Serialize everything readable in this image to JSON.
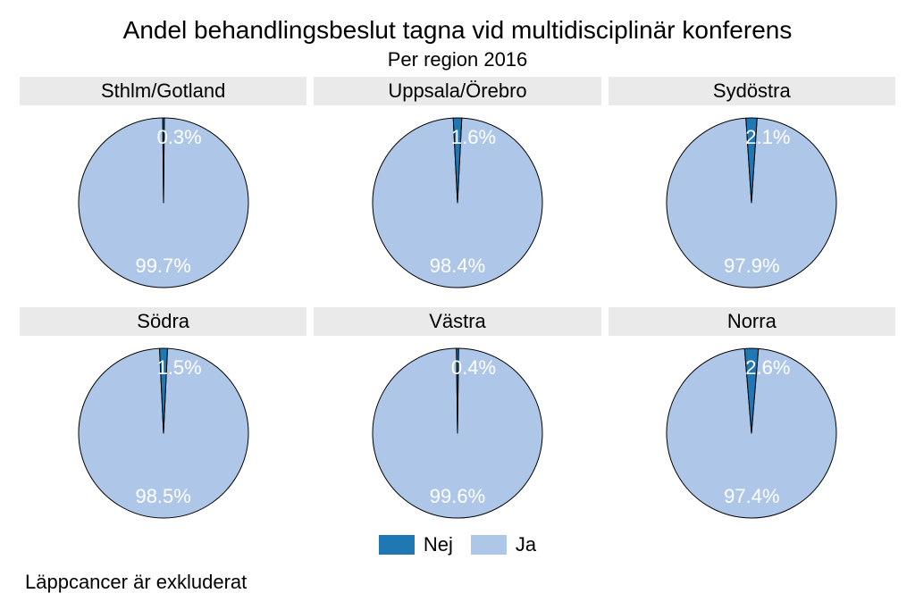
{
  "title": "Andel behandlingsbeslut tagna vid multidisciplinär konferens",
  "subtitle": "Per region 2016",
  "footnote": "Läppcancer är exkluderat",
  "colors": {
    "nej": "#1f77b4",
    "ja": "#aec7e8",
    "stroke": "#000000",
    "panel_header_bg": "#eaeaea",
    "background": "#ffffff",
    "label": "#ffffff"
  },
  "pie": {
    "radius": 95,
    "stroke_width": 1,
    "start_angle_deg": 0,
    "svg_size": 200
  },
  "label_fontsize": 22,
  "title_fontsize": 28,
  "subtitle_fontsize": 22,
  "legend": {
    "items": [
      {
        "key": "nej",
        "label": "Nej",
        "color": "#1f77b4"
      },
      {
        "key": "ja",
        "label": "Ja",
        "color": "#aec7e8"
      }
    ]
  },
  "panels": [
    {
      "name": "Sthlm/Gotland",
      "slices": [
        {
          "key": "nej",
          "value": 0.3,
          "label": "0.3%",
          "color": "#1f77b4"
        },
        {
          "key": "ja",
          "value": 99.7,
          "label": "99.7%",
          "color": "#aec7e8"
        }
      ]
    },
    {
      "name": "Uppsala/Örebro",
      "slices": [
        {
          "key": "nej",
          "value": 1.6,
          "label": "1.6%",
          "color": "#1f77b4"
        },
        {
          "key": "ja",
          "value": 98.4,
          "label": "98.4%",
          "color": "#aec7e8"
        }
      ]
    },
    {
      "name": "Sydöstra",
      "slices": [
        {
          "key": "nej",
          "value": 2.1,
          "label": "2.1%",
          "color": "#1f77b4"
        },
        {
          "key": "ja",
          "value": 97.9,
          "label": "97.9%",
          "color": "#aec7e8"
        }
      ]
    },
    {
      "name": "Södra",
      "slices": [
        {
          "key": "nej",
          "value": 1.5,
          "label": "1.5%",
          "color": "#1f77b4"
        },
        {
          "key": "ja",
          "value": 98.5,
          "label": "98.5%",
          "color": "#aec7e8"
        }
      ]
    },
    {
      "name": "Västra",
      "slices": [
        {
          "key": "nej",
          "value": 0.4,
          "label": "0.4%",
          "color": "#1f77b4"
        },
        {
          "key": "ja",
          "value": 99.6,
          "label": "99.6%",
          "color": "#aec7e8"
        }
      ]
    },
    {
      "name": "Norra",
      "slices": [
        {
          "key": "nej",
          "value": 2.6,
          "label": "2.6%",
          "color": "#1f77b4"
        },
        {
          "key": "ja",
          "value": 97.4,
          "label": "97.4%",
          "color": "#aec7e8"
        }
      ]
    }
  ]
}
